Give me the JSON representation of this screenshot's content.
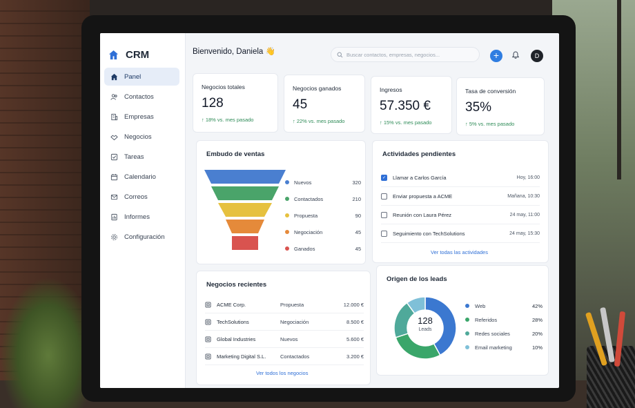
{
  "app": {
    "brand": "CRM",
    "welcome": "Bienvenido, Daniela 👋",
    "search_placeholder": "Buscar contactos, empresas, negocios...",
    "add_label": "+",
    "avatar_initial": "D"
  },
  "sidebar": {
    "items": [
      {
        "label": "Panel",
        "icon": "home-icon",
        "active": true
      },
      {
        "label": "Contactos",
        "icon": "users-icon",
        "active": false
      },
      {
        "label": "Empresas",
        "icon": "building-icon",
        "active": false
      },
      {
        "label": "Negocios",
        "icon": "handshake-icon",
        "active": false
      },
      {
        "label": "Tareas",
        "icon": "checkbox-icon",
        "active": false
      },
      {
        "label": "Calendario",
        "icon": "calendar-icon",
        "active": false
      },
      {
        "label": "Correos",
        "icon": "mail-icon",
        "active": false
      },
      {
        "label": "Informes",
        "icon": "report-icon",
        "active": false
      },
      {
        "label": "Configuración",
        "icon": "gear-icon",
        "active": false
      }
    ]
  },
  "kpis": [
    {
      "title": "Negocios totales",
      "value": "128",
      "delta": "↑ 18% vs. mes pasado"
    },
    {
      "title": "Negocios ganados",
      "value": "45",
      "delta": "↑ 22% vs. mes pasado"
    },
    {
      "title": "Ingresos",
      "value": "57.350 €",
      "delta": "↑ 15% vs. mes pasado"
    },
    {
      "title": "Tasa de conversión",
      "value": "35%",
      "delta": "↑ 5% vs. mes pasado"
    }
  ],
  "funnel": {
    "title": "Embudo de ventas",
    "stages": [
      {
        "label": "Nuevos",
        "value": "320",
        "color": "#4a7fd0"
      },
      {
        "label": "Contactados",
        "value": "210",
        "color": "#4aa46a"
      },
      {
        "label": "Propuesta",
        "value": "90",
        "color": "#e6c13f"
      },
      {
        "label": "Negociación",
        "value": "45",
        "color": "#e58a3a"
      },
      {
        "label": "Ganados",
        "value": "45",
        "color": "#d9534f"
      }
    ]
  },
  "activities": {
    "title": "Actividades pendientes",
    "items": [
      {
        "label": "Llamar a Carlos García",
        "time": "Hoy, 16:00",
        "done": true
      },
      {
        "label": "Enviar propuesta a ACME",
        "time": "Mañana, 10:30",
        "done": false
      },
      {
        "label": "Reunión con Laura Pérez",
        "time": "24 may, 11:00",
        "done": false
      },
      {
        "label": "Seguimiento con TechSolutions",
        "time": "24 may, 15:30",
        "done": false
      }
    ],
    "link": "Ver todas las actividades"
  },
  "deals": {
    "title": "Negocios recientes",
    "items": [
      {
        "name": "ACME Corp.",
        "stage": "Propuesta",
        "amount": "12.000 €"
      },
      {
        "name": "TechSolutions",
        "stage": "Negociación",
        "amount": "8.500 €"
      },
      {
        "name": "Global Industries",
        "stage": "Nuevos",
        "amount": "5.600 €"
      },
      {
        "name": "Marketing Digital S.L.",
        "stage": "Contactados",
        "amount": "3.200 €"
      }
    ],
    "link": "Ver todos los negocios"
  },
  "leads": {
    "title": "Origen de los leads",
    "center_value": "128",
    "center_label": "Leads",
    "sources": [
      {
        "label": "Web",
        "value": "42%",
        "pct": 42,
        "color": "#3b78d0"
      },
      {
        "label": "Referidos",
        "value": "28%",
        "pct": 28,
        "color": "#3aa66a"
      },
      {
        "label": "Redes sociales",
        "value": "20%",
        "pct": 20,
        "color": "#4fa99a"
      },
      {
        "label": "Email marketing",
        "value": "10%",
        "pct": 10,
        "color": "#7fc0d8"
      }
    ]
  }
}
